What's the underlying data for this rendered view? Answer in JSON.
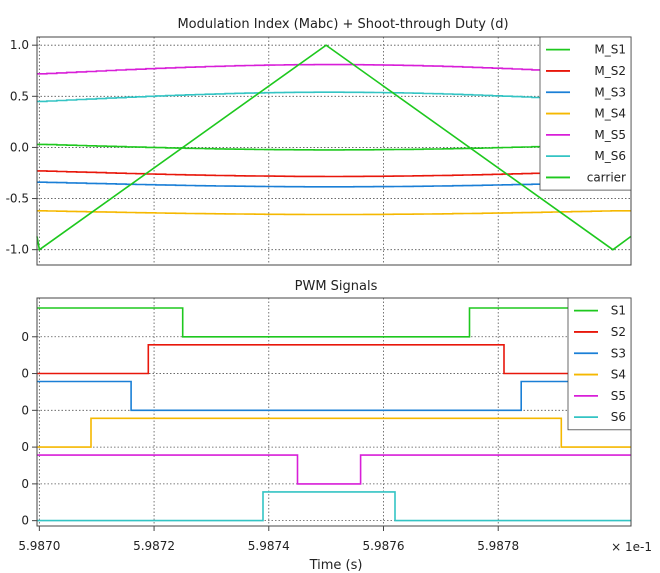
{
  "chart_data": [
    {
      "type": "line",
      "title": "Modulation Index (Mabc) + Shoot-through Duty (d)",
      "xlim": [
        5.9869959,
        5.9880315
      ],
      "ylim": [
        -1.15,
        1.08
      ],
      "yticks": [
        1.0,
        0.5,
        0.0,
        -0.5,
        -1.0
      ],
      "ytick_labels": [
        "1.0",
        "0.5",
        "0.0",
        "-0.5",
        "-1.0"
      ],
      "legend_position": "top-right",
      "series": [
        {
          "name": "M_S1",
          "color": "#1ec81e",
          "start": 0.03,
          "end": 0.03,
          "shape": "dip",
          "depth": 0.06
        },
        {
          "name": "M_S2",
          "color": "#e8170b",
          "start": -0.23,
          "end": -0.23,
          "shape": "dip",
          "depth": 0.06
        },
        {
          "name": "M_S3",
          "color": "#1a7fd6",
          "start": -0.34,
          "end": -0.34,
          "shape": "dip",
          "depth": 0.05
        },
        {
          "name": "M_S4",
          "color": "#f5b800",
          "start": -0.62,
          "end": -0.62,
          "shape": "dip",
          "depth": 0.04
        },
        {
          "name": "M_S5",
          "color": "#d81ed8",
          "start": 0.72,
          "end": 0.72,
          "shape": "bump",
          "depth": 0.1
        },
        {
          "name": "M_S6",
          "color": "#33c4c4",
          "start": 0.45,
          "end": 0.45,
          "shape": "bump",
          "depth": 0.1
        },
        {
          "name": "carrier",
          "color": "#1ec81e",
          "x": [
            5.9869959,
            5.987,
            5.9875,
            5.988,
            5.9880315
          ],
          "y": [
            -0.87,
            -1.0,
            1.0,
            -1.0,
            -0.87
          ]
        }
      ]
    },
    {
      "type": "line",
      "title": "PWM Signals",
      "xlabel": "Time (s)",
      "xticks": [
        5.987,
        5.9872,
        5.9874,
        5.9876,
        5.9878
      ],
      "xtick_labels": [
        "5.9870",
        "5.9872",
        "5.9874",
        "5.9876",
        "5.9878"
      ],
      "x_multiplier_label": "× 1e-1",
      "ytick_labels": [
        "0",
        "0",
        "0",
        "0",
        "0",
        "0"
      ],
      "legend_position": "top-right",
      "series": [
        {
          "name": "S1",
          "color": "#1ec81e",
          "high_from": [
            5.9869959,
            5.98775
          ],
          "high_to": [
            5.98725,
            5.9880315
          ]
        },
        {
          "name": "S2",
          "color": "#e8170b",
          "high_from": [
            5.98719
          ],
          "high_to": [
            5.98781
          ]
        },
        {
          "name": "S3",
          "color": "#1a7fd6",
          "high_from": [
            5.9869959,
            5.98784
          ],
          "high_to": [
            5.98716,
            5.9880315
          ]
        },
        {
          "name": "S4",
          "color": "#f5b800",
          "high_from": [
            5.98709
          ],
          "high_to": [
            5.98791
          ]
        },
        {
          "name": "S5",
          "color": "#d81ed8",
          "high_from": [
            5.9869959,
            5.98756
          ],
          "high_to": [
            5.98745,
            5.9880315
          ]
        },
        {
          "name": "S6",
          "color": "#33c4c4",
          "high_from": [
            5.98739
          ],
          "high_to": [
            5.98762
          ]
        }
      ]
    }
  ]
}
